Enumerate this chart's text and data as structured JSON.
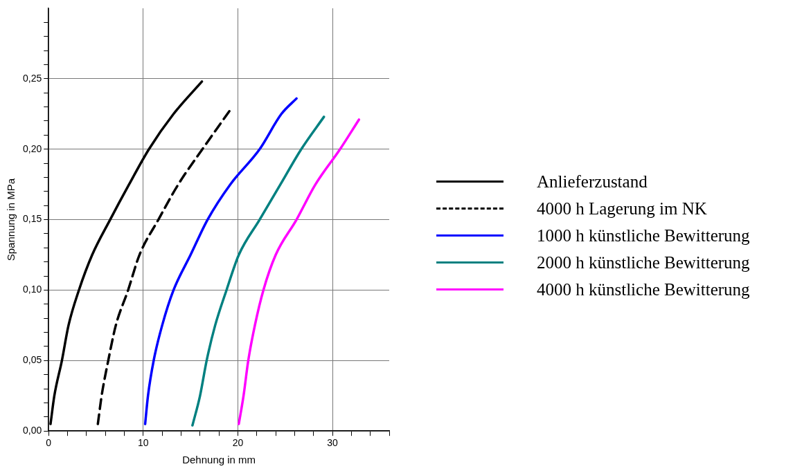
{
  "chart_data": {
    "type": "line",
    "xlabel": "Dehnung in mm",
    "ylabel": "Spannung in MPa",
    "xlim": [
      0,
      36
    ],
    "ylim": [
      0,
      0.3
    ],
    "xticks": [
      0,
      {
        "value": 2,
        "label": null
      },
      {
        "value": 4,
        "label": null
      },
      {
        "value": 6,
        "label": null
      },
      {
        "value": 8,
        "label": null
      },
      10,
      {
        "value": 12,
        "label": null
      },
      {
        "value": 14,
        "label": null
      },
      {
        "value": 16,
        "label": null
      },
      {
        "value": 18,
        "label": null
      },
      20,
      {
        "value": 22,
        "label": null
      },
      {
        "value": 24,
        "label": null
      },
      {
        "value": 26,
        "label": null
      },
      {
        "value": 28,
        "label": null
      },
      30,
      {
        "value": 32,
        "label": null
      },
      {
        "value": 34,
        "label": null
      },
      {
        "value": 36,
        "label": null
      }
    ],
    "yticks": [
      {
        "value": 0,
        "label": "0,00"
      },
      {
        "value": 0.01,
        "label": null
      },
      {
        "value": 0.02,
        "label": null
      },
      {
        "value": 0.03,
        "label": null
      },
      {
        "value": 0.04,
        "label": null
      },
      {
        "value": 0.05,
        "label": "0,05"
      },
      {
        "value": 0.06,
        "label": null
      },
      {
        "value": 0.07,
        "label": null
      },
      {
        "value": 0.08,
        "label": null
      },
      {
        "value": 0.09,
        "label": null
      },
      {
        "value": 0.1,
        "label": "0,10"
      },
      {
        "value": 0.11,
        "label": null
      },
      {
        "value": 0.12,
        "label": null
      },
      {
        "value": 0.13,
        "label": null
      },
      {
        "value": 0.14,
        "label": null
      },
      {
        "value": 0.15,
        "label": "0,15"
      },
      {
        "value": 0.16,
        "label": null
      },
      {
        "value": 0.17,
        "label": null
      },
      {
        "value": 0.18,
        "label": null
      },
      {
        "value": 0.19,
        "label": null
      },
      {
        "value": 0.2,
        "label": "0,20"
      },
      {
        "value": 0.21,
        "label": null
      },
      {
        "value": 0.22,
        "label": null
      },
      {
        "value": 0.23,
        "label": null
      },
      {
        "value": 0.24,
        "label": null
      },
      {
        "value": 0.25,
        "label": "0,25"
      },
      {
        "value": 0.26,
        "label": null
      },
      {
        "value": 0.27,
        "label": null
      },
      {
        "value": 0.28,
        "label": null
      },
      {
        "value": 0.29,
        "label": null
      }
    ],
    "grid": true,
    "legend": "right",
    "marker": "none",
    "series": [
      {
        "name": "Anlieferzustand",
        "color": "#000000",
        "line_style": "solid",
        "x": [
          0.2,
          0.6,
          1.4,
          2.1,
          3.2,
          4.6,
          6.5,
          8.5,
          10.6,
          13.2,
          16.2
        ],
        "values": [
          0.005,
          0.025,
          0.05,
          0.075,
          0.1,
          0.125,
          0.15,
          0.175,
          0.2,
          0.225,
          0.248
        ]
      },
      {
        "name": "4000 h Lagerung im NK",
        "color": "#000000",
        "line_style": "dashed",
        "x": [
          5.2,
          5.6,
          6.3,
          7.1,
          8.4,
          9.6,
          11.6,
          13.7,
          16.25,
          19.1
        ],
        "values": [
          0.005,
          0.025,
          0.05,
          0.075,
          0.1,
          0.125,
          0.15,
          0.175,
          0.2,
          0.227
        ]
      },
      {
        "name": "1000 h künstliche Bewitterung",
        "color": "#0000ff",
        "line_style": "solid",
        "x": [
          10.2,
          10.5,
          11.1,
          12.0,
          13.2,
          15.0,
          16.8,
          19.2,
          22.3,
          24.6,
          26.2
        ],
        "values": [
          0.005,
          0.025,
          0.05,
          0.075,
          0.1,
          0.125,
          0.15,
          0.175,
          0.2,
          0.225,
          0.236
        ]
      },
      {
        "name": "2000 h künstliche Bewitterung",
        "color": "#008080",
        "line_style": "solid",
        "x": [
          15.2,
          16.0,
          16.7,
          17.6,
          18.8,
          20.1,
          22.3,
          24.5,
          26.7,
          29.1
        ],
        "values": [
          0.004,
          0.025,
          0.05,
          0.075,
          0.1,
          0.125,
          0.15,
          0.175,
          0.2,
          0.223
        ]
      },
      {
        "name": "4000 h künstliche Bewitterung",
        "color": "#ff00ff",
        "line_style": "solid",
        "x": [
          20.1,
          20.6,
          21.1,
          21.8,
          22.7,
          24.0,
          26.2,
          28.2,
          30.8,
          32.8
        ],
        "values": [
          0.005,
          0.025,
          0.05,
          0.075,
          0.1,
          0.125,
          0.15,
          0.175,
          0.2,
          0.221
        ]
      }
    ]
  }
}
